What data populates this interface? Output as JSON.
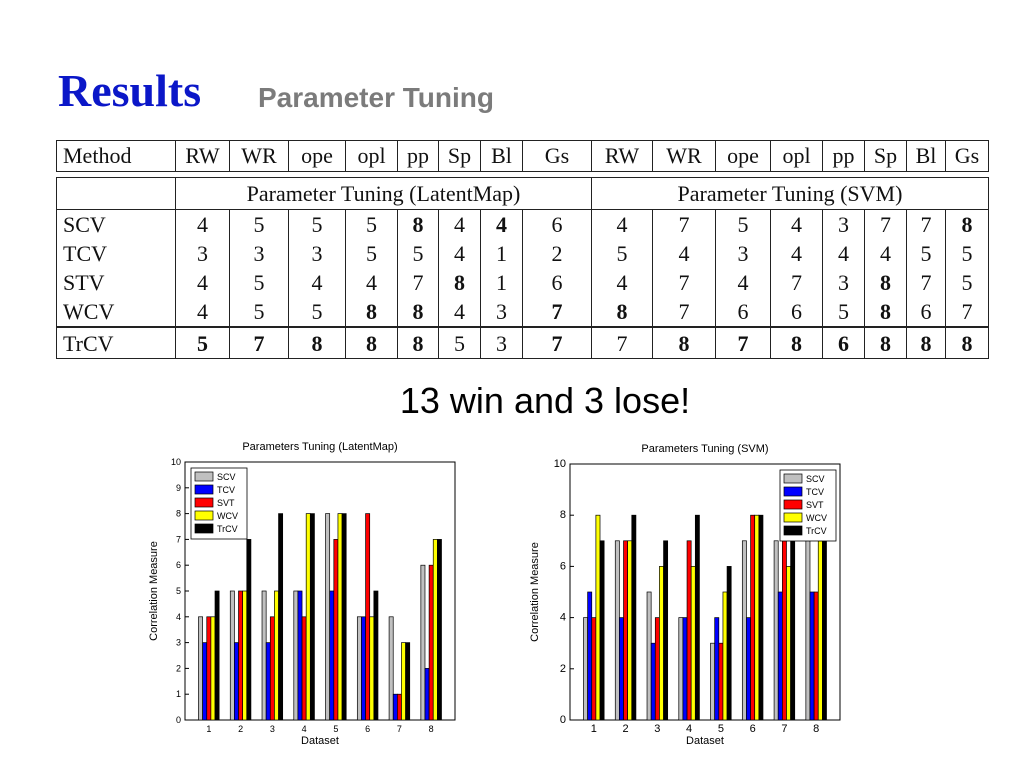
{
  "slide": {
    "title": "Results",
    "subtitle": "Parameter Tuning",
    "caption": "13 win and 3 lose!"
  },
  "colors": {
    "title": "#0b17c8",
    "subtitle": "#7b7b7b"
  },
  "table": {
    "method_header": "Method",
    "datasets": [
      "RW",
      "WR",
      "ope",
      "opl",
      "pp",
      "Sp",
      "Bl",
      "Gs"
    ],
    "groups": [
      "Parameter Tuning (LatentMap)",
      "Parameter Tuning (SVM)"
    ],
    "rows": [
      {
        "method": "SCV",
        "values": [
          4,
          5,
          5,
          5,
          8,
          4,
          4,
          6,
          4,
          7,
          5,
          4,
          3,
          7,
          7,
          8
        ],
        "bold": [
          false,
          false,
          false,
          false,
          true,
          false,
          true,
          false,
          false,
          false,
          false,
          false,
          false,
          false,
          false,
          true
        ]
      },
      {
        "method": "TCV",
        "values": [
          3,
          3,
          3,
          5,
          5,
          4,
          1,
          2,
          5,
          4,
          3,
          4,
          4,
          4,
          5,
          5
        ],
        "bold": [
          false,
          false,
          false,
          false,
          false,
          false,
          false,
          false,
          false,
          false,
          false,
          false,
          false,
          false,
          false,
          false
        ]
      },
      {
        "method": "STV",
        "values": [
          4,
          5,
          4,
          4,
          7,
          8,
          1,
          6,
          4,
          7,
          4,
          7,
          3,
          8,
          7,
          5
        ],
        "bold": [
          false,
          false,
          false,
          false,
          false,
          true,
          false,
          false,
          false,
          false,
          false,
          false,
          false,
          true,
          false,
          false
        ]
      },
      {
        "method": "WCV",
        "values": [
          4,
          5,
          5,
          8,
          8,
          4,
          3,
          7,
          8,
          7,
          6,
          6,
          5,
          8,
          6,
          7
        ],
        "bold": [
          false,
          false,
          false,
          true,
          true,
          false,
          false,
          true,
          true,
          false,
          false,
          false,
          false,
          true,
          false,
          false
        ]
      },
      {
        "method": "TrCV",
        "values": [
          5,
          7,
          8,
          8,
          8,
          5,
          3,
          7,
          7,
          8,
          7,
          8,
          6,
          8,
          8,
          8
        ],
        "bold": [
          true,
          true,
          true,
          true,
          true,
          false,
          false,
          true,
          false,
          true,
          true,
          true,
          true,
          true,
          true,
          true
        ]
      }
    ]
  },
  "chart_data": [
    {
      "type": "bar",
      "title": "Parameters Tuning (LatentMap)",
      "xlabel": "Dataset",
      "ylabel": "Correlation Measure",
      "categories": [
        "1",
        "2",
        "3",
        "4",
        "5",
        "6",
        "7",
        "8"
      ],
      "ylim": [
        0,
        10
      ],
      "yticks": [
        0,
        1,
        2,
        3,
        4,
        5,
        6,
        7,
        8,
        9,
        10
      ],
      "legend": "top-left",
      "series": [
        {
          "name": "SCV",
          "color": "#c0c0c0",
          "values": [
            4,
            5,
            5,
            5,
            8,
            4,
            4,
            6
          ]
        },
        {
          "name": "TCV",
          "color": "#0000ff",
          "values": [
            3,
            3,
            3,
            5,
            5,
            4,
            1,
            2
          ]
        },
        {
          "name": "SVT",
          "color": "#ff0000",
          "values": [
            4,
            5,
            4,
            4,
            7,
            8,
            1,
            6
          ]
        },
        {
          "name": "WCV",
          "color": "#ffff00",
          "values": [
            4,
            5,
            5,
            8,
            8,
            4,
            3,
            7
          ]
        },
        {
          "name": "TrCV",
          "color": "#000000",
          "values": [
            5,
            7,
            8,
            8,
            8,
            5,
            3,
            7
          ]
        }
      ]
    },
    {
      "type": "bar",
      "title": "Parameters Tuning (SVM)",
      "xlabel": "Dataset",
      "ylabel": "Correlation Measure",
      "categories": [
        "1",
        "2",
        "3",
        "4",
        "5",
        "6",
        "7",
        "8"
      ],
      "ylim": [
        0,
        10
      ],
      "yticks": [
        0,
        2,
        4,
        6,
        8,
        10
      ],
      "legend": "top-right",
      "series": [
        {
          "name": "SCV",
          "color": "#c0c0c0",
          "values": [
            4,
            7,
            5,
            4,
            3,
            7,
            7,
            8
          ]
        },
        {
          "name": "TCV",
          "color": "#0000ff",
          "values": [
            5,
            4,
            3,
            4,
            4,
            4,
            5,
            5
          ]
        },
        {
          "name": "SVT",
          "color": "#ff0000",
          "values": [
            4,
            7,
            4,
            7,
            3,
            8,
            7,
            5
          ]
        },
        {
          "name": "WCV",
          "color": "#ffff00",
          "values": [
            8,
            7,
            6,
            6,
            5,
            8,
            6,
            7
          ]
        },
        {
          "name": "TrCV",
          "color": "#000000",
          "values": [
            7,
            8,
            7,
            8,
            6,
            8,
            8,
            8
          ]
        }
      ]
    }
  ]
}
